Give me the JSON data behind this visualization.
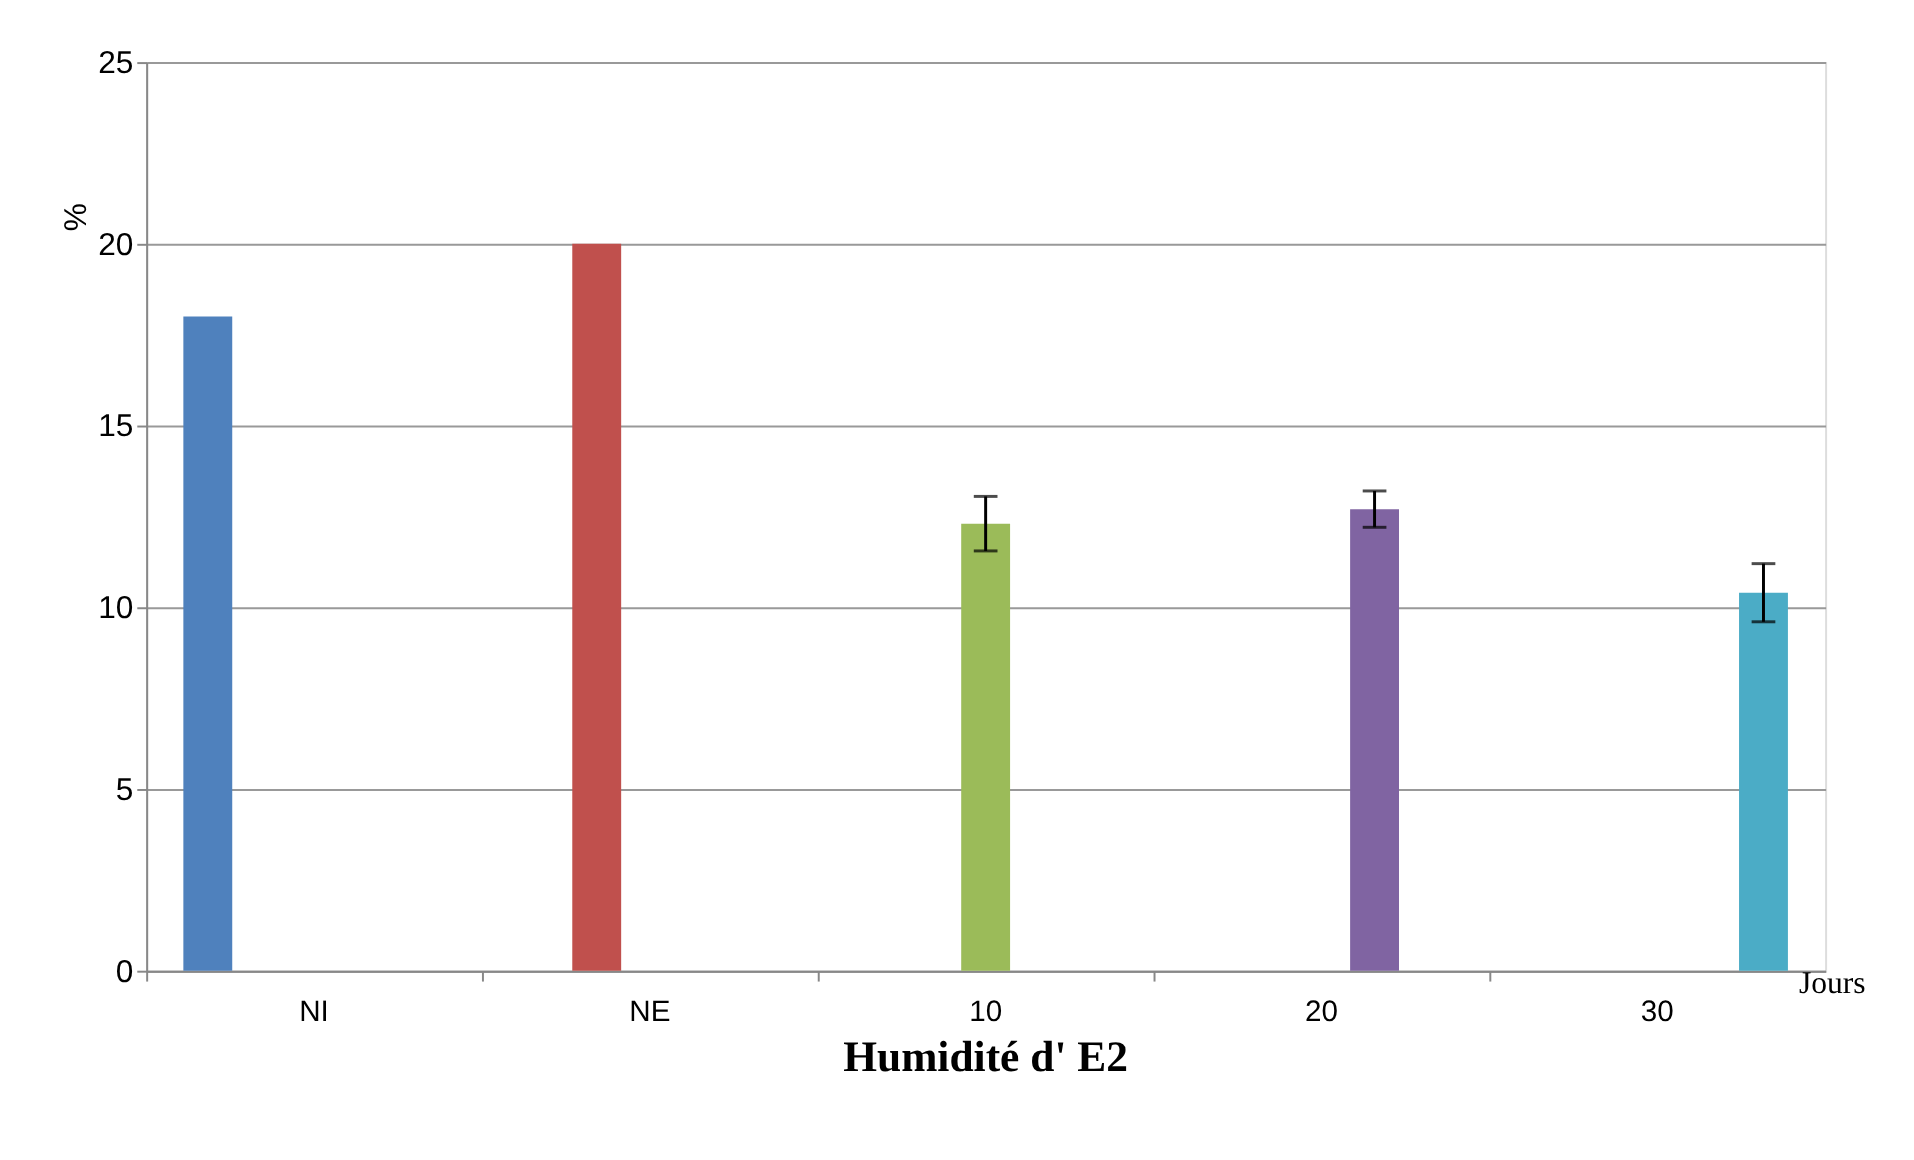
{
  "chart_data": {
    "type": "bar",
    "title": "Humidité d'  E2",
    "xlabel": "Jours",
    "ylabel": "%",
    "categories": [
      "NI",
      "NE",
      "10",
      "20",
      "30"
    ],
    "series": [
      {
        "color": "#4f81bd",
        "values": [
          18,
          null,
          null,
          null,
          null
        ]
      },
      {
        "color": "#c0504d",
        "values": [
          null,
          20,
          null,
          null,
          null
        ]
      },
      {
        "color": "#9bbb59",
        "values": [
          null,
          null,
          12.3,
          null,
          null
        ],
        "errors": [
          null,
          null,
          0.75,
          null,
          null
        ]
      },
      {
        "color": "#8064a2",
        "values": [
          null,
          null,
          null,
          12.7,
          null
        ],
        "errors": [
          null,
          null,
          null,
          0.5,
          null
        ]
      },
      {
        "color": "#4bacc6",
        "values": [
          null,
          null,
          null,
          null,
          10.4
        ],
        "errors": [
          null,
          null,
          null,
          null,
          0.8
        ]
      }
    ],
    "ylim": [
      0,
      25
    ],
    "yticks": [
      0,
      5,
      10,
      15,
      20,
      25
    ],
    "grid": "y",
    "legend": false
  }
}
